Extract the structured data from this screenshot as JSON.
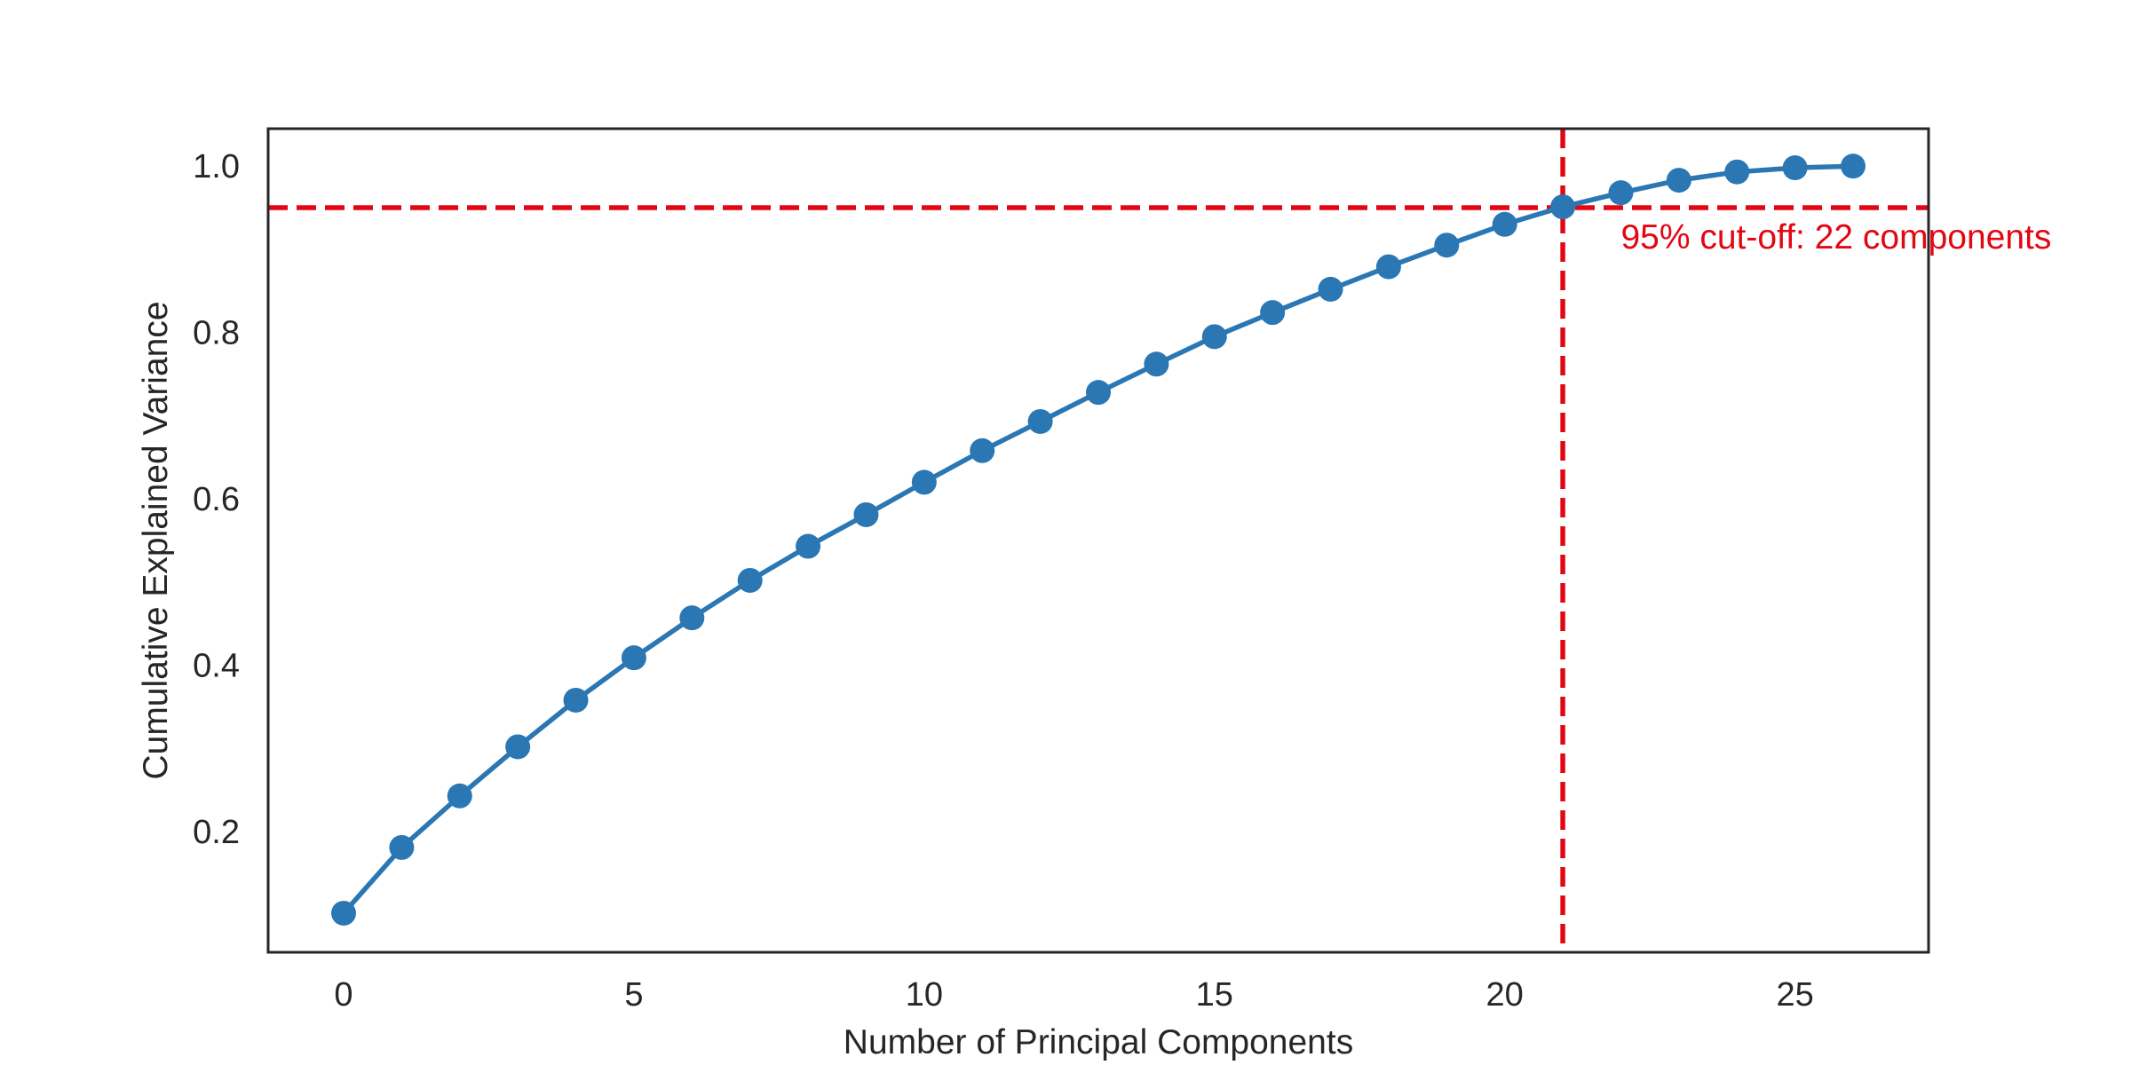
{
  "chart_data": {
    "type": "line",
    "title": "",
    "xlabel": "Number of Principal Components",
    "ylabel": "Cumulative Explained Variance",
    "xlim": [
      -1.3,
      27.3
    ],
    "ylim": [
      0.055,
      1.045
    ],
    "xticks": [
      0,
      5,
      10,
      15,
      20,
      25
    ],
    "xtick_labels": [
      "0",
      "5",
      "10",
      "15",
      "20",
      "25"
    ],
    "yticks": [
      0.2,
      0.4,
      0.6,
      0.8,
      1.0
    ],
    "ytick_labels": [
      "0.2",
      "0.4",
      "0.6",
      "0.8",
      "1.0"
    ],
    "grid": false,
    "series": [
      {
        "color": "#2a77b4",
        "marker": "circle",
        "x": [
          0,
          1,
          2,
          3,
          4,
          5,
          6,
          7,
          8,
          9,
          10,
          11,
          12,
          13,
          14,
          15,
          16,
          17,
          18,
          19,
          20,
          21,
          22,
          23,
          24,
          25,
          26
        ],
        "values": [
          0.102,
          0.181,
          0.243,
          0.302,
          0.358,
          0.409,
          0.457,
          0.502,
          0.543,
          0.581,
          0.62,
          0.658,
          0.693,
          0.728,
          0.762,
          0.795,
          0.824,
          0.852,
          0.879,
          0.905,
          0.93,
          0.951,
          0.968,
          0.983,
          0.993,
          0.998,
          1.0
        ]
      }
    ],
    "reference_lines": {
      "color": "#e30613",
      "horizontal_y": 0.95,
      "vertical_x": 21
    },
    "annotation": {
      "text": "95% cut-off: 22 components",
      "x": 22,
      "y": 0.95,
      "color": "#e30613"
    }
  }
}
